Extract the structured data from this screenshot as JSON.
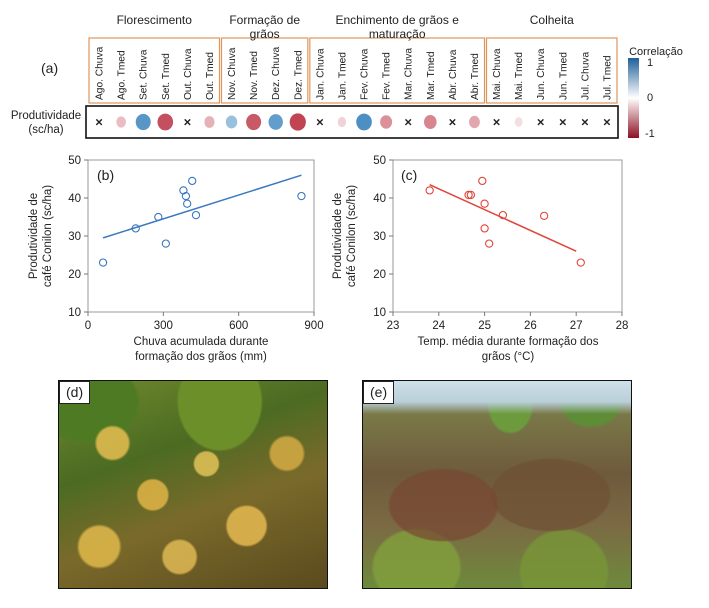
{
  "panel_labels": {
    "a": "(a)",
    "b": "(b)",
    "c": "(c)",
    "d": "(d)",
    "e": "(e)"
  },
  "chart_data": [
    {
      "type": "heatmap",
      "panel": "(a)",
      "row_label": [
        "Produtividade",
        "(sc/ha)"
      ],
      "colorbar": {
        "title": "Correlação",
        "ticks": [
          "1",
          "0",
          "-1"
        ],
        "range": [
          -1,
          1
        ],
        "colors": {
          "positive": "#2b7ab8",
          "neutral": "#ffffff",
          "negative": "#b2182b"
        }
      },
      "groups": [
        {
          "title": [
            "Florescimento"
          ],
          "span": [
            0,
            5
          ]
        },
        {
          "title": [
            "Formação de",
            "grãos"
          ],
          "span": [
            6,
            9
          ]
        },
        {
          "title": [
            "Enchimento de grãos e",
            "maturação"
          ],
          "span": [
            10,
            17
          ]
        },
        {
          "title": [
            "Colheita"
          ],
          "span": [
            18,
            23
          ]
        }
      ],
      "columns": [
        "Ago. Chuva",
        "Ago. Tmed",
        "Set. Chuva",
        "Set. Tmed",
        "Out. Chuva",
        "Out. Tmed",
        "Nov. Chuva",
        "Nov. Tmed",
        "Dez. Chuva",
        "Dez. Tmed",
        "Jan. Chuva",
        "Jan. Tmed",
        "Fev. Chuva",
        "Fev. Tmed",
        "Mar. Chuva",
        "Mar. Tmed",
        "Abr. Chuva",
        "Abr. Tmed",
        "Mai. Chuva",
        "Mai. Tmed",
        "Jun. Chuva",
        "Jun. Tmed",
        "Jul. Chuva",
        "Jul. Tmed"
      ],
      "values": [
        null,
        -0.3,
        0.75,
        -0.8,
        null,
        -0.35,
        0.45,
        -0.75,
        0.7,
        -0.85,
        null,
        -0.2,
        0.8,
        -0.5,
        null,
        -0.55,
        null,
        -0.4,
        null,
        -0.15,
        null,
        null,
        null,
        null
      ],
      "no_value_marker": "×"
    },
    {
      "type": "scatter",
      "panel": "(b)",
      "xlabel": [
        "Chuva acumulada durante",
        "formação dos grãos (mm)"
      ],
      "ylabel": [
        "Produtividade de",
        "café Conilon (sc/ha)"
      ],
      "xlim": [
        0,
        900
      ],
      "ylim": [
        10,
        50
      ],
      "xticks": [
        0,
        300,
        600,
        900
      ],
      "yticks": [
        10,
        20,
        30,
        40,
        50
      ],
      "color": "#3a78c0",
      "points": [
        [
          60,
          23
        ],
        [
          190,
          32
        ],
        [
          280,
          35
        ],
        [
          310,
          28
        ],
        [
          380,
          42
        ],
        [
          390,
          40.5
        ],
        [
          395,
          38.5
        ],
        [
          415,
          44.5
        ],
        [
          430,
          35.5
        ],
        [
          850,
          40.5
        ]
      ],
      "trendline": [
        [
          60,
          29.5
        ],
        [
          850,
          46
        ]
      ]
    },
    {
      "type": "scatter",
      "panel": "(c)",
      "xlabel": [
        "Temp. média durante formação dos",
        "grãos (°C)"
      ],
      "ylabel": [
        "Produtividade de",
        "café Conilon (sc/ha)"
      ],
      "xlim": [
        23,
        28
      ],
      "ylim": [
        10,
        50
      ],
      "xticks": [
        23,
        24,
        25,
        26,
        27,
        28
      ],
      "yticks": [
        10,
        20,
        30,
        40,
        50
      ],
      "color": "#e0463a",
      "points": [
        [
          23.8,
          42
        ],
        [
          24.65,
          40.8
        ],
        [
          24.7,
          40.8
        ],
        [
          24.95,
          44.5
        ],
        [
          25.0,
          38.5
        ],
        [
          25.0,
          32
        ],
        [
          25.1,
          28
        ],
        [
          25.4,
          35.5
        ],
        [
          26.3,
          35.3
        ],
        [
          27.1,
          23
        ]
      ],
      "trendline": [
        [
          23.8,
          43.5
        ],
        [
          27.0,
          26
        ]
      ]
    }
  ]
}
